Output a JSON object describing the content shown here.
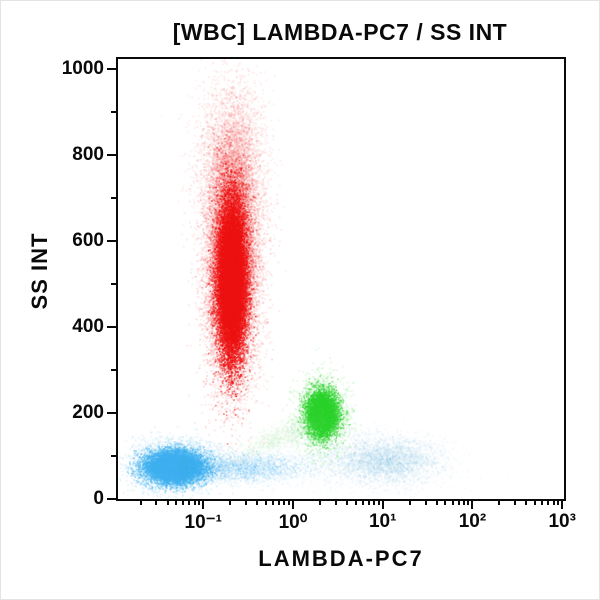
{
  "chart_data": {
    "type": "scatter",
    "title": "[WBC] LAMBDA-PC7 / SS INT",
    "xlabel": "LAMBDA-PC7",
    "ylabel": "SS INT",
    "x_scale": "log10",
    "x_range_exp": [
      -1.95,
      3.02
    ],
    "y_range": [
      0,
      1023
    ],
    "grid": false,
    "legend": "none",
    "x_major_ticks": [
      {
        "exp": -1,
        "label": "10⁻¹"
      },
      {
        "exp": 0,
        "label": "10⁰"
      },
      {
        "exp": 1,
        "label": "10¹"
      },
      {
        "exp": 2,
        "label": "10²"
      },
      {
        "exp": 3,
        "label": "10³"
      }
    ],
    "x_minor_decades": [
      -2,
      -1,
      0,
      1,
      2
    ],
    "y_major_ticks": [
      {
        "value": 0,
        "label": "0"
      },
      {
        "value": 200,
        "label": "200"
      },
      {
        "value": 400,
        "label": "400"
      },
      {
        "value": 600,
        "label": "600"
      },
      {
        "value": 800,
        "label": "800"
      },
      {
        "value": 1000,
        "label": "1000"
      }
    ],
    "y_minor_ticks": [
      100,
      300,
      500,
      700,
      900
    ],
    "populations": [
      {
        "name": "granulocytes-red",
        "color": "#ee1111",
        "center": {
          "x": 0.2,
          "ss": 520
        },
        "layers": [
          {
            "n": 9000,
            "cx": -0.69,
            "sx": 0.155,
            "cy": 570,
            "sy": 150,
            "tilt": 0,
            "alpha": 0.07,
            "r": 2.1
          },
          {
            "n": 3500,
            "cx": -0.69,
            "sx": 0.185,
            "cy": 780,
            "sy": 95,
            "tilt": 0,
            "alpha": 0.05,
            "r": 2.0
          },
          {
            "n": 9000,
            "cx": -0.69,
            "sx": 0.115,
            "cy": 535,
            "sy": 115,
            "tilt": 0,
            "alpha": 0.16,
            "r": 1.8
          },
          {
            "n": 15000,
            "cx": -0.69,
            "sx": 0.075,
            "cy": 510,
            "sy": 88,
            "tilt": 0,
            "alpha": 0.5,
            "r": 1.6
          }
        ]
      },
      {
        "name": "lymphocytes-blue",
        "color": "#3fb0ef",
        "center": {
          "x": 0.05,
          "ss": 78
        },
        "layers": [
          {
            "n": 4500,
            "cx": -1.32,
            "sx": 0.23,
            "cy": 80,
            "sy": 26,
            "tilt": 0,
            "alpha": 0.1,
            "r": 2.0
          },
          {
            "n": 8000,
            "cx": -1.33,
            "sx": 0.155,
            "cy": 76,
            "sy": 17,
            "tilt": 0,
            "alpha": 0.38,
            "r": 1.7
          },
          {
            "n": 1500,
            "cx": -1.42,
            "sx": 0.018,
            "cy": 74,
            "sy": 16,
            "tilt": 0,
            "alpha": 0.28,
            "r": 1.6
          },
          {
            "n": 1500,
            "cx": -1.3,
            "sx": 0.018,
            "cy": 76,
            "sy": 17,
            "tilt": 0,
            "alpha": 0.28,
            "r": 1.6
          },
          {
            "n": 1200,
            "cx": -1.22,
            "sx": 0.015,
            "cy": 72,
            "sy": 15,
            "tilt": 0,
            "alpha": 0.22,
            "r": 1.6
          },
          {
            "n": 2600,
            "cx": -0.55,
            "sx": 0.34,
            "cy": 74,
            "sy": 16,
            "tilt": 0,
            "alpha": 0.07,
            "r": 1.8
          }
        ]
      },
      {
        "name": "monocytes-green",
        "color": "#2bd32b",
        "center": {
          "x": 2.1,
          "ss": 200
        },
        "layers": [
          {
            "n": 2600,
            "cx": 0.32,
            "sx": 0.135,
            "cy": 198,
            "sy": 40,
            "tilt": 0,
            "alpha": 0.1,
            "r": 2.0
          },
          {
            "n": 5200,
            "cx": 0.32,
            "sx": 0.085,
            "cy": 200,
            "sy": 26,
            "tilt": 0,
            "alpha": 0.4,
            "r": 1.6
          }
        ]
      },
      {
        "name": "bridge-light-green",
        "color": "#8fe08f",
        "center": {
          "x": 0.8,
          "ss": 150
        },
        "layers": [
          {
            "n": 900,
            "cx": -0.12,
            "sx": 0.26,
            "cy": 148,
            "sy": 16,
            "tilt": 22,
            "alpha": 0.06,
            "r": 2.0
          }
        ]
      },
      {
        "name": "faint-blue-right",
        "color": "#6aaade",
        "center": {
          "x": 11,
          "ss": 90
        },
        "layers": [
          {
            "n": 3200,
            "cx": 1.02,
            "sx": 0.3,
            "cy": 90,
            "sy": 27,
            "tilt": 0,
            "alpha": 0.05,
            "r": 2.1
          },
          {
            "n": 900,
            "cx": 0.55,
            "sx": 0.55,
            "cy": 95,
            "sy": 34,
            "tilt": 0,
            "alpha": 0.03,
            "r": 2.0
          }
        ]
      }
    ]
  }
}
